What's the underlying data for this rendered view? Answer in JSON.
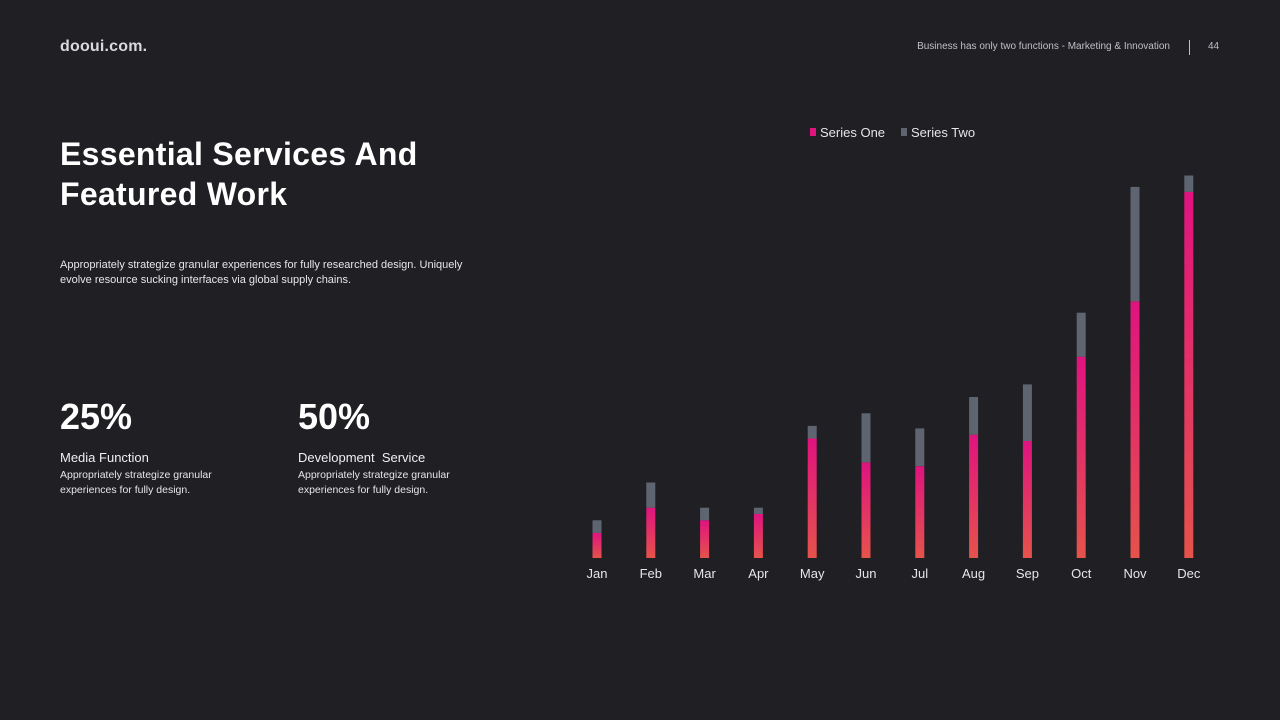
{
  "header": {
    "logo": "dooui.com.",
    "tagline": "Business has only two functions - Marketing & Innovation",
    "page_number": "44"
  },
  "main": {
    "title": "Essential Services And Featured Work",
    "intro": "Appropriately strategize granular experiences for fully researched design. Uniquely evolve resource sucking interfaces via global supply chains.",
    "stats": [
      {
        "value": "25%",
        "label": "Media Function",
        "description": "Appropriately strategize granular experiences for fully design."
      },
      {
        "value": "50%",
        "label": "Development  Service",
        "description": "Appropriately strategize granular experiences for fully design."
      }
    ]
  },
  "colors": {
    "background": "#1f1f24",
    "series_one_top": "#e0137f",
    "series_one_bottom": "#e5534b",
    "series_two": "#5f6570"
  },
  "chart_data": {
    "type": "bar",
    "stacked": true,
    "categories": [
      "Jan",
      "Feb",
      "Mar",
      "Apr",
      "May",
      "Jun",
      "Jul",
      "Aug",
      "Sep",
      "Oct",
      "Nov",
      "Dec"
    ],
    "series": [
      {
        "name": "Series One",
        "color": "#e0137f",
        "values": [
          2,
          4,
          3,
          3.5,
          9.5,
          7.6,
          7.3,
          9.8,
          9.3,
          16,
          20.4,
          29.1
        ]
      },
      {
        "name": "Series Two",
        "color": "#5f6570",
        "values": [
          1,
          2,
          1,
          0.5,
          1,
          3.9,
          3,
          3,
          4.5,
          3.5,
          9.1,
          1.3
        ]
      }
    ],
    "legend_position": "top",
    "ylim": [
      0,
      31
    ],
    "grid": false
  }
}
